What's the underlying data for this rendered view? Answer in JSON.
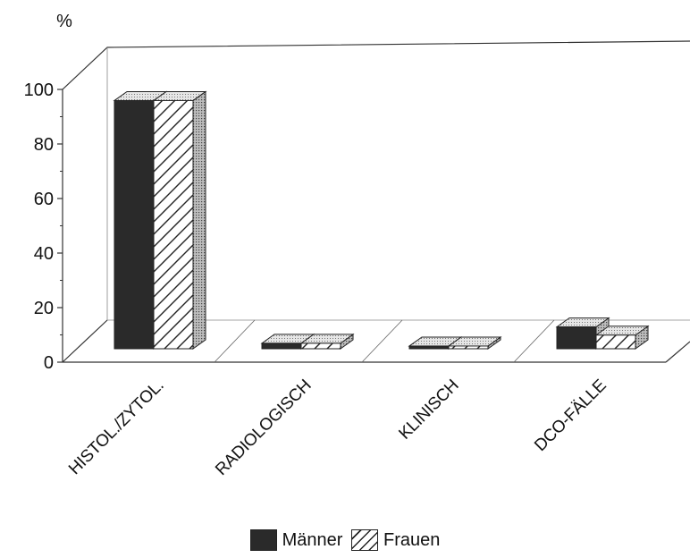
{
  "chart_data": {
    "type": "bar",
    "unit_label": "%",
    "categories": [
      "HISTOL./ZYTOL.",
      "RADIOLOGISCH",
      "KLINISCH",
      "DCO-FÄLLE"
    ],
    "series": [
      {
        "name": "Männer",
        "values": [
          91,
          2,
          1,
          8
        ],
        "color": "#2a2a2a"
      },
      {
        "name": "Frauen",
        "values": [
          91,
          2,
          1,
          5
        ],
        "color": "#ffffff"
      }
    ],
    "y_ticks": [
      "0",
      "20",
      "40",
      "60",
      "80",
      "100"
    ],
    "ylim": [
      0,
      100
    ],
    "legend_position": "bottom-center",
    "grid": false
  }
}
